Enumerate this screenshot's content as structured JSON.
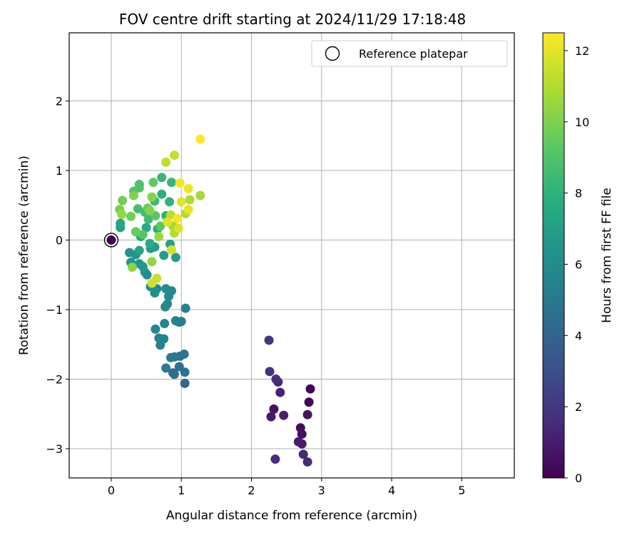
{
  "chart_data": {
    "type": "scatter",
    "title": "FOV centre drift starting at 2024/11/29 17:18:48",
    "xlabel": "Angular distance from reference (arcmin)",
    "ylabel": "Rotation from reference (arcmin)",
    "xlim": [
      -0.6,
      5.75
    ],
    "ylim": [
      -3.42,
      2.98
    ],
    "xticks": [
      "0",
      "1",
      "2",
      "3",
      "4",
      "5"
    ],
    "yticks": [
      "−3",
      "−2",
      "−1",
      "0",
      "1",
      "2"
    ],
    "grid": true,
    "colormap": "viridis",
    "colorbar": {
      "label": "Hours from first FF file",
      "min": 0,
      "max": 12.5,
      "ticks": [
        "0",
        "2",
        "4",
        "6",
        "8",
        "10",
        "12"
      ]
    },
    "legend": {
      "position": "top-right",
      "entries": [
        "Reference platepar"
      ]
    },
    "reference_point": {
      "x": 0.0,
      "y": 0.0
    },
    "series": [
      {
        "name": "FOV centre drift",
        "points": [
          {
            "x": 2.84,
            "y": -2.14,
            "h": 0.1
          },
          {
            "x": 2.82,
            "y": -2.33,
            "h": 0.2
          },
          {
            "x": 2.7,
            "y": -2.7,
            "h": 0.4
          },
          {
            "x": 2.72,
            "y": -2.79,
            "h": 0.5
          },
          {
            "x": 2.32,
            "y": -2.43,
            "h": 0.6
          },
          {
            "x": 2.8,
            "y": -2.51,
            "h": 0.7
          },
          {
            "x": 2.28,
            "y": -2.54,
            "h": 0.8
          },
          {
            "x": 2.72,
            "y": -2.93,
            "h": 0.9
          },
          {
            "x": 2.67,
            "y": -2.9,
            "h": 1.0
          },
          {
            "x": 2.46,
            "y": -2.52,
            "h": 1.1
          },
          {
            "x": 2.41,
            "y": -2.19,
            "h": 1.2
          },
          {
            "x": 2.38,
            "y": -2.04,
            "h": 1.3
          },
          {
            "x": 2.74,
            "y": -3.08,
            "h": 1.4
          },
          {
            "x": 2.8,
            "y": -3.19,
            "h": 1.5
          },
          {
            "x": 2.35,
            "y": -2.0,
            "h": 1.6
          },
          {
            "x": 2.34,
            "y": -3.15,
            "h": 1.7
          },
          {
            "x": 2.26,
            "y": -1.89,
            "h": 1.8
          },
          {
            "x": 2.25,
            "y": -1.44,
            "h": 1.9
          },
          {
            "x": 1.05,
            "y": -2.06,
            "h": 4.1
          },
          {
            "x": 0.88,
            "y": -1.91,
            "h": 4.3
          },
          {
            "x": 0.97,
            "y": -1.82,
            "h": 4.5
          },
          {
            "x": 0.9,
            "y": -1.93,
            "h": 4.6
          },
          {
            "x": 1.05,
            "y": -1.9,
            "h": 4.7
          },
          {
            "x": 0.98,
            "y": -1.67,
            "h": 4.8
          },
          {
            "x": 1.04,
            "y": -1.64,
            "h": 4.9
          },
          {
            "x": 0.9,
            "y": -1.68,
            "h": 5.0
          },
          {
            "x": 0.85,
            "y": -1.69,
            "h": 5.1
          },
          {
            "x": 0.78,
            "y": -1.84,
            "h": 5.2
          },
          {
            "x": 1.0,
            "y": -1.17,
            "h": 5.3
          },
          {
            "x": 0.92,
            "y": -1.16,
            "h": 5.4
          },
          {
            "x": 0.97,
            "y": -1.18,
            "h": 5.4
          },
          {
            "x": 1.06,
            "y": -0.98,
            "h": 5.5
          },
          {
            "x": 0.7,
            "y": -1.51,
            "h": 5.5
          },
          {
            "x": 0.75,
            "y": -1.42,
            "h": 5.6
          },
          {
            "x": 0.68,
            "y": -1.41,
            "h": 5.6
          },
          {
            "x": 0.76,
            "y": -1.2,
            "h": 5.7
          },
          {
            "x": 0.63,
            "y": -1.28,
            "h": 5.7
          },
          {
            "x": 0.8,
            "y": -0.92,
            "h": 5.8
          },
          {
            "x": 0.77,
            "y": -0.96,
            "h": 5.8
          },
          {
            "x": 0.82,
            "y": -0.81,
            "h": 5.9
          },
          {
            "x": 0.86,
            "y": -0.73,
            "h": 5.9
          },
          {
            "x": 0.78,
            "y": -0.7,
            "h": 6.0
          },
          {
            "x": 0.65,
            "y": -0.7,
            "h": 6.0
          },
          {
            "x": 0.62,
            "y": -0.76,
            "h": 6.1
          },
          {
            "x": 0.56,
            "y": -0.67,
            "h": 6.1
          },
          {
            "x": 0.51,
            "y": -0.5,
            "h": 6.2
          },
          {
            "x": 0.48,
            "y": -0.46,
            "h": 6.2
          },
          {
            "x": 0.4,
            "y": -0.34,
            "h": 6.3
          },
          {
            "x": 0.35,
            "y": -0.21,
            "h": 6.3
          },
          {
            "x": 0.26,
            "y": -0.18,
            "h": 6.4
          },
          {
            "x": 0.28,
            "y": -0.32,
            "h": 6.5
          },
          {
            "x": 0.45,
            "y": -0.38,
            "h": 6.6
          },
          {
            "x": 0.56,
            "y": -0.12,
            "h": 6.7
          },
          {
            "x": 0.62,
            "y": -0.1,
            "h": 6.8
          },
          {
            "x": 0.92,
            "y": -0.25,
            "h": 6.9
          },
          {
            "x": 0.75,
            "y": -0.22,
            "h": 7.0
          },
          {
            "x": 0.84,
            "y": -0.06,
            "h": 7.1
          },
          {
            "x": 0.4,
            "y": -0.15,
            "h": 7.2
          },
          {
            "x": 0.13,
            "y": 0.18,
            "h": 7.3
          },
          {
            "x": 0.13,
            "y": 0.24,
            "h": 7.4
          },
          {
            "x": 0.42,
            "y": 0.05,
            "h": 7.5
          },
          {
            "x": 0.5,
            "y": 0.18,
            "h": 7.6
          },
          {
            "x": 0.55,
            "y": -0.05,
            "h": 7.7
          },
          {
            "x": 0.66,
            "y": 0.16,
            "h": 7.8
          },
          {
            "x": 0.72,
            "y": 0.66,
            "h": 7.9
          },
          {
            "x": 0.78,
            "y": 0.35,
            "h": 8.0
          },
          {
            "x": 0.83,
            "y": 0.55,
            "h": 8.1
          },
          {
            "x": 0.86,
            "y": 0.83,
            "h": 8.2
          },
          {
            "x": 0.72,
            "y": 0.9,
            "h": 8.3
          },
          {
            "x": 0.62,
            "y": 0.56,
            "h": 8.4
          },
          {
            "x": 0.53,
            "y": 0.3,
            "h": 8.5
          },
          {
            "x": 0.38,
            "y": 0.45,
            "h": 8.6
          },
          {
            "x": 0.48,
            "y": 0.4,
            "h": 8.7
          },
          {
            "x": 0.4,
            "y": 0.75,
            "h": 8.8
          },
          {
            "x": 0.4,
            "y": 0.8,
            "h": 8.9
          },
          {
            "x": 0.32,
            "y": 0.7,
            "h": 9.0
          },
          {
            "x": 0.45,
            "y": 0.08,
            "h": 9.1
          },
          {
            "x": 0.63,
            "y": 0.35,
            "h": 9.2
          },
          {
            "x": 0.7,
            "y": 0.2,
            "h": 9.3
          },
          {
            "x": 0.6,
            "y": 0.83,
            "h": 9.4
          },
          {
            "x": 0.35,
            "y": 0.12,
            "h": 9.5
          },
          {
            "x": 0.52,
            "y": 0.46,
            "h": 9.6
          },
          {
            "x": 0.28,
            "y": 0.34,
            "h": 9.7
          },
          {
            "x": 0.16,
            "y": 0.57,
            "h": 9.8
          },
          {
            "x": 0.12,
            "y": 0.44,
            "h": 9.9
          },
          {
            "x": 0.32,
            "y": 0.64,
            "h": 10.0
          },
          {
            "x": 0.55,
            "y": 0.42,
            "h": 10.1
          },
          {
            "x": 0.58,
            "y": 0.62,
            "h": 10.2
          },
          {
            "x": 0.3,
            "y": -0.39,
            "h": 10.3
          },
          {
            "x": 0.58,
            "y": -0.31,
            "h": 10.4
          },
          {
            "x": 0.15,
            "y": 0.37,
            "h": 10.5
          },
          {
            "x": 0.68,
            "y": 0.05,
            "h": 10.6
          },
          {
            "x": 0.88,
            "y": 0.2,
            "h": 10.7
          },
          {
            "x": 1.27,
            "y": 0.64,
            "h": 10.8
          },
          {
            "x": 1.12,
            "y": 0.58,
            "h": 10.9
          },
          {
            "x": 1.06,
            "y": 0.38,
            "h": 11.0
          },
          {
            "x": 0.9,
            "y": 0.1,
            "h": 11.1
          },
          {
            "x": 0.85,
            "y": 0.36,
            "h": 11.2
          },
          {
            "x": 0.78,
            "y": 1.12,
            "h": 11.3
          },
          {
            "x": 0.9,
            "y": 1.22,
            "h": 11.4
          },
          {
            "x": 0.65,
            "y": -0.55,
            "h": 11.5
          },
          {
            "x": 0.58,
            "y": -0.62,
            "h": 11.6
          },
          {
            "x": 0.86,
            "y": -0.14,
            "h": 11.7
          },
          {
            "x": 0.96,
            "y": 0.17,
            "h": 11.8
          },
          {
            "x": 0.8,
            "y": 0.26,
            "h": 11.9
          },
          {
            "x": 1.0,
            "y": 0.55,
            "h": 12.0
          },
          {
            "x": 1.1,
            "y": 0.44,
            "h": 12.1
          },
          {
            "x": 1.1,
            "y": 0.74,
            "h": 12.2
          },
          {
            "x": 0.98,
            "y": 0.82,
            "h": 12.3
          },
          {
            "x": 0.94,
            "y": 0.31,
            "h": 12.4
          },
          {
            "x": 1.27,
            "y": 1.45,
            "h": 12.5
          }
        ]
      }
    ]
  }
}
